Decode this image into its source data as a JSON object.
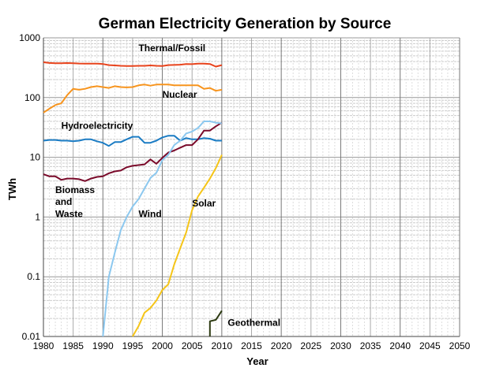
{
  "chart_data": {
    "type": "line",
    "title": "German Electricity Generation by Source",
    "xlabel": "Year",
    "ylabel": "TWh",
    "xlim": [
      1980,
      2050
    ],
    "ylim": [
      0.01,
      1000
    ],
    "yscale": "log",
    "grid": true,
    "x_ticks": [
      "1980",
      "1985",
      "1990",
      "1995",
      "2000",
      "2005",
      "2010",
      "2015",
      "2020",
      "2025",
      "2030",
      "2035",
      "2040",
      "2045",
      "2050"
    ],
    "y_ticks": [
      "0.01",
      "0.1",
      "1",
      "10",
      "100",
      "1000"
    ],
    "series": [
      {
        "name": "Thermal/Fossil",
        "color": "#e8431c",
        "x": [
          1980,
          1981,
          1982,
          1983,
          1984,
          1985,
          1986,
          1987,
          1988,
          1989,
          1990,
          1991,
          1992,
          1993,
          1994,
          1995,
          1996,
          1997,
          1998,
          1999,
          2000,
          2001,
          2002,
          2003,
          2004,
          2005,
          2006,
          2007,
          2008,
          2009,
          2010
        ],
        "values": [
          390,
          380,
          375,
          375,
          378,
          375,
          372,
          370,
          370,
          370,
          365,
          350,
          345,
          340,
          338,
          338,
          340,
          340,
          345,
          340,
          338,
          350,
          352,
          355,
          365,
          362,
          370,
          370,
          365,
          330,
          350
        ]
      },
      {
        "name": "Nuclear",
        "color": "#f7941d",
        "x": [
          1980,
          1981,
          1982,
          1983,
          1984,
          1985,
          1986,
          1987,
          1988,
          1989,
          1990,
          1991,
          1992,
          1993,
          1994,
          1995,
          1996,
          1997,
          1998,
          1999,
          2000,
          2001,
          2002,
          2003,
          2004,
          2005,
          2006,
          2007,
          2008,
          2009,
          2010
        ],
        "values": [
          56,
          65,
          75,
          80,
          110,
          140,
          135,
          140,
          150,
          155,
          150,
          145,
          155,
          150,
          148,
          150,
          160,
          165,
          158,
          165,
          165,
          165,
          160,
          160,
          160,
          160,
          160,
          140,
          145,
          130,
          135
        ]
      },
      {
        "name": "Hydroelectricity",
        "color": "#1b7cc4",
        "x": [
          1980,
          1981,
          1982,
          1983,
          1984,
          1985,
          1986,
          1987,
          1988,
          1989,
          1990,
          1991,
          1992,
          1993,
          1994,
          1995,
          1996,
          1997,
          1998,
          1999,
          2000,
          2001,
          2002,
          2003,
          2004,
          2005,
          2006,
          2007,
          2008,
          2009,
          2010
        ],
        "values": [
          19,
          19.5,
          19.5,
          19,
          19,
          18.5,
          19,
          20,
          20,
          18.5,
          17.5,
          15.5,
          18,
          18,
          20,
          22,
          22,
          17.5,
          17.5,
          19,
          21.5,
          23,
          23,
          19,
          21,
          20,
          20,
          21,
          20.5,
          19,
          19
        ]
      },
      {
        "name": "Biomass and Waste",
        "color": "#7a0a2a",
        "x": [
          1980,
          1981,
          1982,
          1983,
          1984,
          1985,
          1986,
          1987,
          1988,
          1989,
          1990,
          1991,
          1992,
          1993,
          1994,
          1995,
          1996,
          1997,
          1998,
          1999,
          2000,
          2001,
          2002,
          2003,
          2004,
          2005,
          2006,
          2007,
          2008,
          2009,
          2010
        ],
        "values": [
          5.2,
          4.8,
          4.8,
          4.2,
          4.4,
          4.4,
          4.3,
          4.0,
          4.4,
          4.7,
          4.8,
          5.4,
          5.8,
          6.0,
          6.8,
          7.2,
          7.4,
          7.6,
          9.2,
          7.8,
          9.8,
          12,
          13,
          14.5,
          16,
          16,
          20,
          28,
          28,
          33,
          38
        ]
      },
      {
        "name": "Wind",
        "color": "#8cc8ef",
        "x": [
          1990,
          1991,
          1992,
          1993,
          1994,
          1995,
          1996,
          1997,
          1998,
          1999,
          2000,
          2001,
          2002,
          2003,
          2004,
          2005,
          2006,
          2007,
          2008,
          2009,
          2010
        ],
        "values": [
          0.01,
          0.1,
          0.25,
          0.6,
          1.0,
          1.5,
          2.0,
          3.0,
          4.5,
          5.5,
          9,
          11,
          16,
          19,
          25,
          27,
          31,
          40,
          40,
          38,
          37
        ]
      },
      {
        "name": "Solar",
        "color": "#f5c518",
        "x": [
          1995,
          1996,
          1997,
          1998,
          1999,
          2000,
          2001,
          2002,
          2003,
          2004,
          2005,
          2006,
          2007,
          2008,
          2009,
          2010
        ],
        "values": [
          0.01,
          0.015,
          0.025,
          0.03,
          0.04,
          0.06,
          0.075,
          0.16,
          0.3,
          0.55,
          1.3,
          2.2,
          3.1,
          4.4,
          6.6,
          11
        ]
      },
      {
        "name": "Geothermal",
        "color": "#2d3a12",
        "x": [
          2008,
          2008,
          2009,
          2010
        ],
        "values": [
          0.01,
          0.018,
          0.019,
          0.027
        ]
      }
    ],
    "annotations": [
      {
        "text": "Thermal/Fossil",
        "x": 1996,
        "y": 600
      },
      {
        "text": "Nuclear",
        "x": 2000,
        "y": 100
      },
      {
        "text": "Hydroelectricity",
        "x": 1983,
        "y": 30
      },
      {
        "text": "Biomass",
        "x": 1982,
        "y": 2.5
      },
      {
        "text": "and",
        "x": 1982,
        "y": 1.6
      },
      {
        "text": "Waste",
        "x": 1982,
        "y": 1.0
      },
      {
        "text": "Wind",
        "x": 1996,
        "y": 1.0
      },
      {
        "text": "Solar",
        "x": 2005,
        "y": 1.5
      },
      {
        "text": "Geothermal",
        "x": 2011,
        "y": 0.015
      }
    ]
  }
}
